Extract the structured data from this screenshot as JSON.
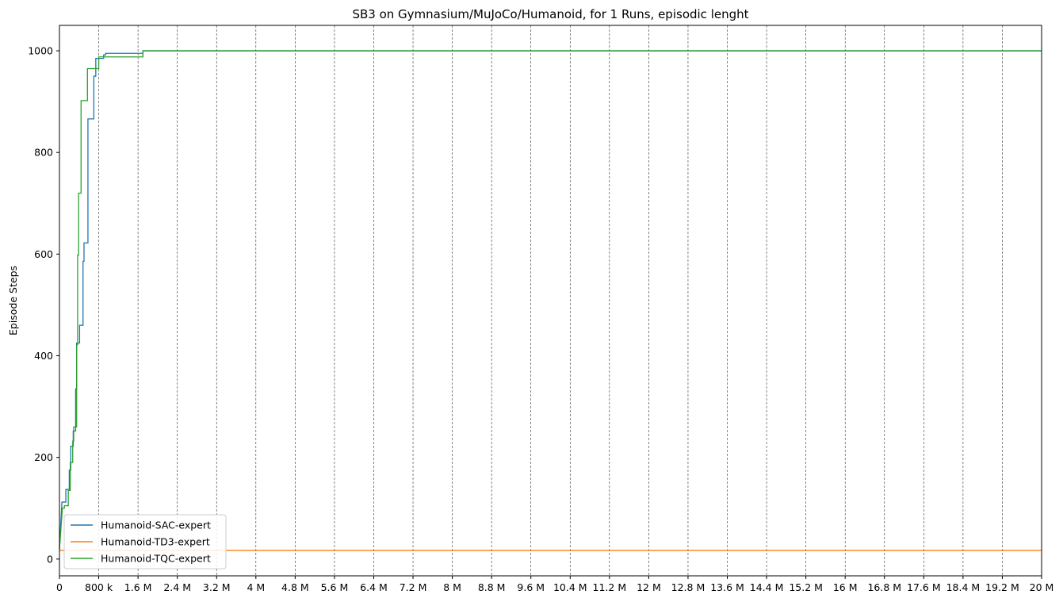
{
  "chart_data": {
    "type": "line",
    "title": "SB3 on Gymnasium/MuJoCo/Humanoid, for 1 Runs, episodic lenght",
    "xlabel": "",
    "ylabel": "Episode Steps",
    "xlim": [
      0,
      20000000
    ],
    "ylim": [
      -33,
      1050
    ],
    "grid": {
      "x": "dashed-vertical",
      "y": false
    },
    "legend_position": "lower-left",
    "x_ticks": [
      0,
      800000,
      1600000,
      2400000,
      3200000,
      4000000,
      4800000,
      5600000,
      6400000,
      7200000,
      8000000,
      8800000,
      9600000,
      10400000,
      11200000,
      12000000,
      12800000,
      13600000,
      14400000,
      15200000,
      16000000,
      16800000,
      17600000,
      18400000,
      19200000,
      20000000
    ],
    "x_tick_labels": [
      "0",
      "800 k",
      "1.6 M",
      "2.4 M",
      "3.2 M",
      "4 M",
      "4.8 M",
      "5.6 M",
      "6.4 M",
      "7.2 M",
      "8 M",
      "8.8 M",
      "9.6 M",
      "10.4 M",
      "11.2 M",
      "12 M",
      "12.8 M",
      "13.6 M",
      "14.4 M",
      "15.2 M",
      "16 M",
      "16.8 M",
      "17.6 M",
      "18.4 M",
      "19.2 M",
      "20 M"
    ],
    "y_ticks": [
      0,
      200,
      400,
      600,
      800,
      1000
    ],
    "y_tick_labels": [
      "0",
      "200",
      "400",
      "600",
      "800",
      "1000"
    ],
    "series": [
      {
        "name": "Humanoid-SAC-expert",
        "color": "#1f77b4",
        "step": true,
        "points": [
          [
            0,
            20
          ],
          [
            30000,
            75
          ],
          [
            50000,
            112
          ],
          [
            130000,
            112
          ],
          [
            130000,
            137
          ],
          [
            200000,
            137
          ],
          [
            200000,
            175
          ],
          [
            230000,
            175
          ],
          [
            230000,
            222
          ],
          [
            280000,
            222
          ],
          [
            280000,
            252
          ],
          [
            330000,
            252
          ],
          [
            330000,
            335
          ],
          [
            350000,
            335
          ],
          [
            350000,
            425
          ],
          [
            410000,
            425
          ],
          [
            410000,
            460
          ],
          [
            480000,
            460
          ],
          [
            480000,
            586
          ],
          [
            500000,
            586
          ],
          [
            500000,
            622
          ],
          [
            580000,
            622
          ],
          [
            580000,
            866
          ],
          [
            700000,
            866
          ],
          [
            700000,
            950
          ],
          [
            740000,
            950
          ],
          [
            740000,
            985
          ],
          [
            900000,
            985
          ],
          [
            900000,
            992
          ],
          [
            940000,
            992
          ],
          [
            940000,
            995
          ],
          [
            1700000,
            995
          ],
          [
            1700000,
            1000
          ],
          [
            20000000,
            1000
          ]
        ]
      },
      {
        "name": "Humanoid-TD3-expert",
        "color": "#ff7f0e",
        "step": false,
        "points": [
          [
            0,
            17
          ],
          [
            20000000,
            17
          ]
        ]
      },
      {
        "name": "Humanoid-TQC-expert",
        "color": "#2ca02c",
        "step": true,
        "points": [
          [
            0,
            20
          ],
          [
            20000000,
            20
          ],
          [
            30000,
            60
          ],
          [
            60000,
            100
          ],
          [
            100000,
            100
          ],
          [
            100000,
            105
          ],
          [
            180000,
            105
          ],
          [
            180000,
            135
          ],
          [
            220000,
            135
          ],
          [
            220000,
            190
          ],
          [
            270000,
            190
          ],
          [
            270000,
            232
          ],
          [
            290000,
            232
          ],
          [
            290000,
            260
          ],
          [
            350000,
            260
          ],
          [
            350000,
            422
          ],
          [
            370000,
            422
          ],
          [
            370000,
            598
          ],
          [
            390000,
            598
          ],
          [
            390000,
            720
          ],
          [
            440000,
            720
          ],
          [
            440000,
            902
          ],
          [
            570000,
            902
          ],
          [
            570000,
            965
          ],
          [
            800000,
            965
          ],
          [
            800000,
            988
          ],
          [
            1700000,
            988
          ],
          [
            1700000,
            1000
          ],
          [
            20000000,
            1000
          ]
        ]
      }
    ]
  }
}
